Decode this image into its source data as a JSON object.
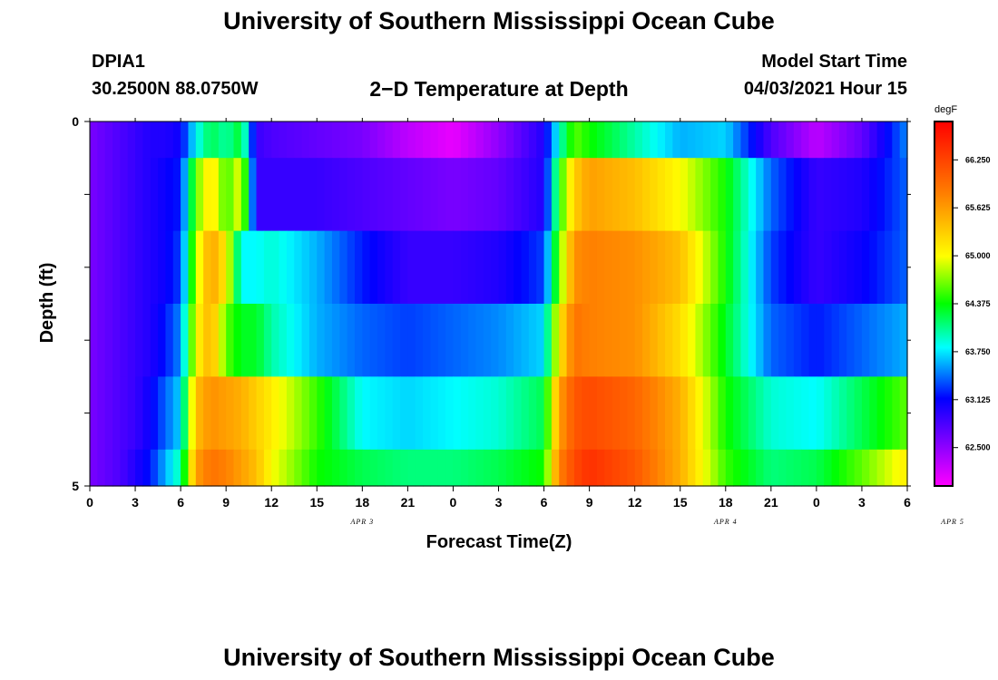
{
  "header": {
    "title": "University of Southern Mississippi Ocean Cube",
    "footer_title": "University of Southern Mississippi Ocean Cube",
    "station": "DPIA1",
    "coords": "30.2500N  88.0750W",
    "plot_title": "2−D Temperature at Depth",
    "model_label": "Model Start Time",
    "model_time": "04/03/2021 Hour 15"
  },
  "chart_data": {
    "type": "heatmap",
    "title": "2−D Temperature at Depth",
    "xlabel": "Forecast Time(Z)",
    "ylabel": "Depth (ft)",
    "x_tick_labels": [
      "0",
      "3",
      "6",
      "9",
      "12",
      "15",
      "18",
      "21",
      "0",
      "3",
      "6",
      "9",
      "12",
      "15",
      "18",
      "21",
      "0",
      "3",
      "6"
    ],
    "date_labels": [
      {
        "label": "APR 3",
        "tick_index": 6
      },
      {
        "label": "APR 4",
        "tick_index": 14
      },
      {
        "label": "APR 5",
        "tick_index": 19
      }
    ],
    "x_range_hours": [
      0,
      54
    ],
    "y_range_ft": [
      0,
      5
    ],
    "y_tick_labels": [
      "0",
      "5"
    ],
    "depth_rows_ft": [
      0,
      1,
      2,
      3,
      4,
      5
    ],
    "colorbar": {
      "unit": "degF",
      "min": 62.0,
      "max": 66.75,
      "tick_labels": [
        "62.500",
        "63.125",
        "63.750",
        "64.375",
        "65.000",
        "65.625",
        "66.250"
      ],
      "tick_values": [
        62.5,
        63.125,
        63.75,
        64.375,
        65.0,
        65.625,
        66.25
      ],
      "palette": [
        "#ff00ff",
        "#8000ff",
        "#0000ff",
        "#00ffff",
        "#00ff00",
        "#ffff00",
        "#ff8000",
        "#ff0000"
      ]
    },
    "key_hours": [
      0,
      1,
      2,
      3,
      4,
      5,
      6,
      7,
      8,
      9,
      10,
      11,
      12,
      15,
      18,
      21,
      24,
      27,
      30,
      31,
      32,
      33,
      36,
      39,
      42,
      45,
      48,
      51,
      54
    ],
    "rows": [
      {
        "depth_ft": 0,
        "values": [
          62.6,
          62.7,
          62.8,
          62.9,
          63.0,
          63.0,
          63.1,
          63.8,
          64.2,
          64.0,
          64.3,
          62.9,
          62.8,
          62.7,
          62.6,
          62.3,
          62.1,
          62.5,
          63.0,
          63.9,
          64.6,
          64.4,
          64.0,
          63.6,
          63.7,
          62.8,
          62.3,
          62.7,
          63.5
        ]
      },
      {
        "depth_ft": 1,
        "values": [
          62.6,
          62.7,
          62.8,
          62.9,
          63.0,
          63.1,
          63.2,
          64.6,
          65.2,
          64.5,
          65.0,
          62.9,
          62.9,
          62.9,
          62.8,
          62.7,
          62.6,
          62.7,
          63.0,
          64.4,
          65.3,
          65.6,
          65.4,
          65.0,
          64.4,
          63.4,
          62.9,
          63.0,
          63.4
        ]
      },
      {
        "depth_ft": 2,
        "values": [
          62.6,
          62.7,
          62.8,
          62.9,
          63.0,
          63.1,
          63.3,
          64.8,
          65.6,
          65.1,
          63.8,
          63.8,
          63.9,
          63.6,
          63.2,
          62.9,
          62.9,
          63.0,
          63.3,
          64.6,
          65.7,
          65.8,
          65.7,
          65.4,
          64.4,
          63.3,
          62.9,
          63.1,
          63.4
        ]
      },
      {
        "depth_ft": 3,
        "values": [
          62.6,
          62.7,
          62.8,
          62.9,
          63.0,
          63.2,
          63.5,
          65.0,
          65.5,
          64.6,
          64.3,
          64.3,
          64.0,
          63.6,
          63.4,
          63.3,
          63.4,
          63.5,
          63.7,
          65.1,
          65.9,
          65.8,
          65.7,
          65.2,
          64.3,
          63.4,
          63.2,
          63.4,
          63.6
        ]
      },
      {
        "depth_ft": 4,
        "values": [
          62.6,
          62.7,
          62.8,
          62.9,
          63.1,
          63.4,
          63.7,
          65.4,
          65.7,
          65.6,
          65.5,
          65.3,
          65.1,
          64.5,
          63.8,
          63.7,
          63.8,
          63.9,
          64.2,
          65.6,
          66.1,
          66.2,
          66.0,
          65.5,
          64.4,
          63.9,
          63.8,
          64.2,
          64.6
        ]
      },
      {
        "depth_ft": 5,
        "values": [
          62.6,
          62.7,
          62.8,
          63.0,
          63.2,
          63.6,
          64.0,
          65.6,
          65.9,
          65.8,
          65.6,
          65.4,
          65.0,
          64.4,
          64.2,
          64.1,
          64.1,
          64.2,
          64.4,
          65.8,
          66.2,
          66.4,
          66.1,
          65.5,
          64.5,
          64.1,
          64.2,
          64.6,
          65.1
        ]
      }
    ]
  }
}
